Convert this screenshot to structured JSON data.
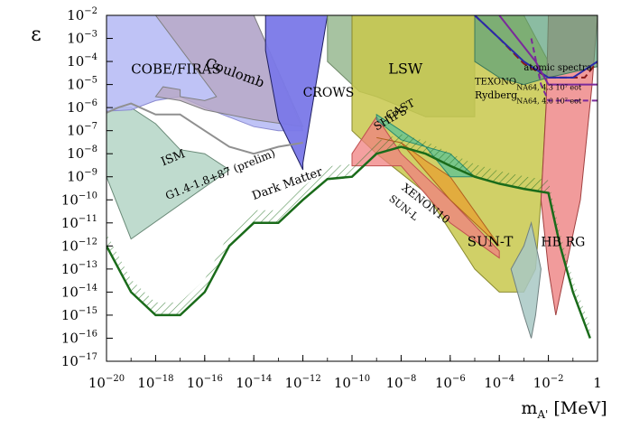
{
  "chart_data": {
    "type": "area",
    "xlabel": "m",
    "xlabel_sub": "A'",
    "xlabel_unit": "[MeV]",
    "ylabel": "ε",
    "xscale": "log",
    "yscale": "log",
    "xlim": [
      1e-20,
      1
    ],
    "ylim": [
      1e-17,
      0.01
    ],
    "grid": false,
    "x_ticks": [
      {
        "mantissa": "10",
        "exp": "−20",
        "value": 1e-20
      },
      {
        "mantissa": "10",
        "exp": "−18",
        "value": 1e-18
      },
      {
        "mantissa": "10",
        "exp": "−16",
        "value": 1e-16
      },
      {
        "mantissa": "10",
        "exp": "−14",
        "value": 1e-14
      },
      {
        "mantissa": "10",
        "exp": "−12",
        "value": 1e-12
      },
      {
        "mantissa": "10",
        "exp": "−10",
        "value": 1e-10
      },
      {
        "mantissa": "10",
        "exp": "−8",
        "value": 1e-08
      },
      {
        "mantissa": "10",
        "exp": "−6",
        "value": 1e-06
      },
      {
        "mantissa": "10",
        "exp": "−4",
        "value": 0.0001
      },
      {
        "mantissa": "10",
        "exp": "−2",
        "value": 0.01
      },
      {
        "mantissa": "1",
        "exp": "",
        "value": 1
      }
    ],
    "y_ticks": [
      {
        "mantissa": "10",
        "exp": "−2",
        "value": 0.01
      },
      {
        "mantissa": "10",
        "exp": "−3",
        "value": 0.001
      },
      {
        "mantissa": "10",
        "exp": "−4",
        "value": 0.0001
      },
      {
        "mantissa": "10",
        "exp": "−5",
        "value": 1e-05
      },
      {
        "mantissa": "10",
        "exp": "−6",
        "value": 1e-06
      },
      {
        "mantissa": "10",
        "exp": "−7",
        "value": 1e-07
      },
      {
        "mantissa": "10",
        "exp": "−8",
        "value": 1e-08
      },
      {
        "mantissa": "10",
        "exp": "−9",
        "value": 1e-09
      },
      {
        "mantissa": "10",
        "exp": "−10",
        "value": 1e-10
      },
      {
        "mantissa": "10",
        "exp": "−11",
        "value": 1e-11
      },
      {
        "mantissa": "10",
        "exp": "−12",
        "value": 1e-12
      },
      {
        "mantissa": "10",
        "exp": "−13",
        "value": 1e-13
      },
      {
        "mantissa": "10",
        "exp": "−14",
        "value": 1e-14
      },
      {
        "mantissa": "10",
        "exp": "−15",
        "value": 1e-15
      },
      {
        "mantissa": "10",
        "exp": "−16",
        "value": 1e-16
      },
      {
        "mantissa": "10",
        "exp": "−17",
        "value": 1e-17
      }
    ],
    "regions": [
      {
        "name": "ISM",
        "color": "#9cc8b4",
        "opacity": 0.65,
        "stroke": "#6a8a78",
        "points": [
          [
            1e-20,
            6e-07
          ],
          [
            2e-20,
            1e-06
          ],
          [
            1e-19,
            1e-06
          ],
          [
            1e-18,
            2e-07
          ],
          [
            1e-17,
            1.5e-08
          ],
          [
            1e-16,
            1e-08
          ],
          [
            1e-15,
            2e-09
          ],
          [
            1e-19,
            2e-12
          ],
          [
            1e-20,
            1e-09
          ]
        ]
      },
      {
        "name": "COBE/FIRAS",
        "color": "#b4b8f4",
        "opacity": 0.85,
        "stroke": "#8a8ad0",
        "points": [
          [
            1e-20,
            0.01
          ],
          [
            1e-14,
            0.01
          ],
          [
            1e-12,
            1e-07
          ],
          [
            1e-13,
            1e-07
          ],
          [
            1e-14,
            1.5e-07
          ],
          [
            1e-16,
            1e-06
          ],
          [
            1e-17,
            3e-06
          ],
          [
            1e-18,
            2e-06
          ],
          [
            1e-19,
            8e-07
          ],
          [
            1e-20,
            7e-07
          ]
        ]
      },
      {
        "name": "Coulomb",
        "color": "#b8a8c4",
        "opacity": 0.8,
        "stroke": "#808080",
        "points": [
          [
            1e-18,
            0.01
          ],
          [
            1e-14,
            0.01
          ],
          [
            1e-12,
            1.5e-07
          ],
          [
            1e-14,
            3e-07
          ],
          [
            1e-16,
            8e-07
          ],
          [
            1e-17,
            2e-06
          ],
          [
            1e-18,
            3e-06
          ],
          [
            2e-18,
            8e-06
          ],
          [
            1e-17,
            6e-06
          ],
          [
            1e-17,
            3e-06
          ],
          [
            1e-16,
            2e-06
          ],
          [
            3e-16,
            3e-06
          ]
        ]
      },
      {
        "name": "CROWS",
        "color": "#7a78e8",
        "opacity": 0.95,
        "stroke": "#202060",
        "points": [
          [
            3e-14,
            0.01
          ],
          [
            1e-11,
            0.01
          ],
          [
            1e-12,
            4e-09
          ],
          [
            1e-12,
            2e-09
          ],
          [
            1e-13,
            3e-07
          ],
          [
            3e-14,
            0.0003
          ]
        ]
      },
      {
        "name": "LSW",
        "color": "#98b890",
        "opacity": 0.85,
        "stroke": "#708a6a",
        "points": [
          [
            1e-11,
            0.01
          ],
          [
            1e-05,
            0.01
          ],
          [
            1e-05,
            4e-07
          ],
          [
            1e-07,
            4e-07
          ],
          [
            1e-09,
            3e-06
          ],
          [
            2e-10,
            5e-06
          ],
          [
            1e-11,
            0.0001
          ]
        ]
      },
      {
        "name": "SUN-T",
        "color": "#c8c84c",
        "opacity": 0.85,
        "stroke": "#8a8a30",
        "points": [
          [
            1e-10,
            0.01
          ],
          [
            0.001,
            0.01
          ],
          [
            0.01,
            0.0001
          ],
          [
            0.005,
            1e-10
          ],
          [
            0.003,
            1e-13
          ],
          [
            0.001,
            1e-14
          ],
          [
            0.0001,
            1e-14
          ],
          [
            1e-05,
            1e-13
          ],
          [
            1e-07,
            2e-10
          ],
          [
            1e-09,
            1e-08
          ],
          [
            1e-10,
            1e-07
          ]
        ]
      },
      {
        "name": "HB",
        "color": "#a8c8c4",
        "opacity": 0.85,
        "stroke": "#708080",
        "points": [
          [
            0.0003,
            1e-13
          ],
          [
            0.001,
            1e-12
          ],
          [
            0.002,
            1e-11
          ],
          [
            0.005,
            1e-13
          ],
          [
            0.003,
            1e-15
          ],
          [
            0.002,
            1e-16
          ],
          [
            0.001,
            1e-15
          ]
        ]
      },
      {
        "name": "RG",
        "color": "#f09090",
        "opacity": 0.9,
        "stroke": "#a04040",
        "points": [
          [
            0.01,
            0.01
          ],
          [
            1,
            0.01
          ],
          [
            0.6,
            1e-05
          ],
          [
            0.2,
            1e-10
          ],
          [
            0.05,
            1e-13
          ],
          [
            0.02,
            1e-15
          ],
          [
            0.01,
            1e-13
          ],
          [
            0.005,
            1e-10
          ],
          [
            0.008,
            1e-06
          ]
        ]
      },
      {
        "name": "XENON10",
        "color": "#f08080",
        "opacity": 0.75,
        "stroke": "#c05050",
        "points": [
          [
            1e-10,
            3e-09
          ],
          [
            1e-08,
            3e-09
          ],
          [
            1e-06,
            1e-11
          ],
          [
            0.0001,
            3e-13
          ],
          [
            0.0001,
            6e-13
          ],
          [
            1e-06,
            1e-10
          ],
          [
            1e-08,
            1e-08
          ],
          [
            1e-09,
            4e-07
          ],
          [
            1e-10,
            1e-08
          ]
        ]
      },
      {
        "name": "SHIPS",
        "color": "#e8a030",
        "opacity": 0.75,
        "stroke": "#b06020",
        "points": [
          [
            1e-09,
            5e-08
          ],
          [
            1e-08,
            3e-08
          ],
          [
            1e-06,
            1e-10
          ],
          [
            0.0001,
            1e-12
          ],
          [
            1e-06,
            1e-09
          ],
          [
            1e-07,
            5e-09
          ],
          [
            1e-08,
            3e-08
          ]
        ]
      },
      {
        "name": "CAST",
        "color": "#40c0a0",
        "opacity": 0.6,
        "stroke": "#2a8a70",
        "points": [
          [
            1e-09,
            5e-07
          ],
          [
            1e-08,
            1e-07
          ],
          [
            1e-07,
            2e-08
          ],
          [
            1e-06,
            1e-09
          ],
          [
            1e-05,
            1e-09
          ],
          [
            1e-06,
            1e-08
          ],
          [
            1e-08,
            4e-08
          ],
          [
            1e-09,
            3e-07
          ]
        ]
      },
      {
        "name": "Rydberg",
        "color": "#5aa07a",
        "opacity": 0.7,
        "stroke": "#3c7a5a",
        "points": [
          [
            1e-05,
            0.01
          ],
          [
            1,
            0.01
          ],
          [
            1,
            6e-05
          ],
          [
            0.01,
            2e-05
          ],
          [
            0.001,
            1e-05
          ],
          [
            0.0001,
            2e-05
          ],
          [
            1e-05,
            0.0001
          ]
        ]
      }
    ],
    "lines": [
      {
        "name": "G1.4-1.8+87 (prelim)",
        "color": "#909090",
        "dash": "",
        "points": [
          [
            1e-20,
            6e-07
          ],
          [
            3e-20,
            1e-06
          ],
          [
            1e-19,
            1.5e-06
          ],
          [
            1e-18,
            5e-07
          ],
          [
            1e-17,
            5e-07
          ],
          [
            1e-16,
            1e-07
          ],
          [
            1e-15,
            2e-08
          ],
          [
            1e-14,
            1e-08
          ],
          [
            1e-13,
            2e-08
          ],
          [
            1e-12,
            3e-08
          ]
        ]
      },
      {
        "name": "TEXONO",
        "color": "#8b1a1a",
        "dash": "8,4",
        "points": [
          [
            1e-05,
            0.01
          ],
          [
            0.0001,
            0.001
          ],
          [
            0.001,
            8e-05
          ],
          [
            0.01,
            2e-05
          ],
          [
            0.1,
            2e-05
          ],
          [
            0.3,
            2e-05
          ],
          [
            1,
            0.0001
          ]
        ]
      },
      {
        "name": "atomic spectra",
        "color": "#2a2aaa",
        "dash": "",
        "points": [
          [
            1e-05,
            0.01
          ],
          [
            0.0001,
            0.001
          ],
          [
            0.001,
            0.0001
          ],
          [
            0.01,
            2e-05
          ],
          [
            0.1,
            2e-05
          ],
          [
            1,
            0.0001
          ]
        ]
      },
      {
        "name": "NA64, 4.3 10^7 eot",
        "color": "#7a2a9a",
        "dash": "",
        "points": [
          [
            0.0001,
            0.01
          ],
          [
            0.003,
            0.0001
          ],
          [
            0.01,
            1e-05
          ],
          [
            1,
            1e-05
          ]
        ]
      },
      {
        "name": "NA64, 4.0 10^7 eot",
        "color": "#7a2a9a",
        "dash": "6,4",
        "points": [
          [
            0.002,
            0.001
          ],
          [
            0.005,
            1e-05
          ],
          [
            0.01,
            2e-06
          ],
          [
            1,
            2e-06
          ]
        ]
      },
      {
        "name": "Dark Matter",
        "color": "#1a6b1a",
        "dash": "",
        "points": [
          [
            1e-20,
            1e-12
          ],
          [
            1e-19,
            1e-14
          ],
          [
            1e-18,
            1e-15
          ],
          [
            1e-17,
            1e-15
          ],
          [
            1e-16,
            1e-14
          ],
          [
            1e-15,
            1e-12
          ],
          [
            1e-14,
            1e-11
          ],
          [
            1e-13,
            1e-11
          ],
          [
            1e-12,
            1e-10
          ],
          [
            1e-11,
            8e-10
          ],
          [
            1e-10,
            1e-09
          ],
          [
            1e-09,
            1e-08
          ],
          [
            1e-08,
            2e-08
          ],
          [
            1e-07,
            1e-08
          ],
          [
            1e-06,
            3e-09
          ],
          [
            1e-05,
            1e-09
          ],
          [
            0.0001,
            5e-10
          ],
          [
            0.001,
            3e-10
          ],
          [
            0.01,
            2e-10
          ],
          [
            0.03,
            1e-12
          ],
          [
            0.1,
            1e-14
          ],
          [
            0.5,
            1e-16
          ]
        ]
      }
    ],
    "annotations": [
      {
        "text": "COBE/FIRAS",
        "x": 1e-19,
        "y": 3e-05,
        "size": 15,
        "rotate": 0
      },
      {
        "text": "Coulomb",
        "x": 1e-16,
        "y": 6e-05,
        "size": 15,
        "rotate": 20
      },
      {
        "text": "CROWS",
        "x": 1e-12,
        "y": 3e-06,
        "size": 14,
        "rotate": 0
      },
      {
        "text": "LSW",
        "x": 3e-09,
        "y": 3e-05,
        "size": 16,
        "rotate": 0
      },
      {
        "text": "ISM",
        "x": 2e-18,
        "y": 3e-09,
        "size": 13,
        "rotate": -22
      },
      {
        "text": "G1.4-1.8+87 (prelim)",
        "x": 3e-18,
        "y": 1e-10,
        "size": 12,
        "rotate": -22
      },
      {
        "text": "Dark Matter",
        "x": 1e-14,
        "y": 1e-10,
        "size": 13,
        "rotate": -20
      },
      {
        "text": "CAST",
        "x": 3e-09,
        "y": 3e-07,
        "size": 12,
        "rotate": -28
      },
      {
        "text": "SHIPS",
        "x": 1e-09,
        "y": 1e-07,
        "size": 12,
        "rotate": -30
      },
      {
        "text": "XENON10",
        "x": 1e-08,
        "y": 3e-10,
        "size": 12,
        "rotate": 38
      },
      {
        "text": "SUN-L",
        "x": 3e-09,
        "y": 1e-10,
        "size": 11,
        "rotate": 38
      },
      {
        "text": "SUN-T",
        "x": 5e-06,
        "y": 1e-12,
        "size": 15,
        "rotate": 0
      },
      {
        "text": "HB",
        "x": 0.005,
        "y": 1e-12,
        "size": 14,
        "rotate": 0
      },
      {
        "text": "RG",
        "x": 0.05,
        "y": 1e-12,
        "size": 14,
        "rotate": 0
      },
      {
        "text": "TEXONO",
        "x": 1e-05,
        "y": 1e-05,
        "size": 10,
        "rotate": 0
      },
      {
        "text": "Rydberg",
        "x": 1e-05,
        "y": 2.5e-06,
        "size": 11,
        "rotate": 0
      },
      {
        "text": "atomic spectra",
        "x": 0.001,
        "y": 4e-05,
        "size": 10,
        "rotate": 0
      },
      {
        "text": "NA64, 4.3 10⁷ eot",
        "x": 0.0005,
        "y": 6e-06,
        "size": 8,
        "rotate": 0
      },
      {
        "text": "NA64, 4.0 10⁷ eot",
        "x": 0.0005,
        "y": 1.5e-06,
        "size": 8,
        "rotate": 0
      }
    ]
  }
}
